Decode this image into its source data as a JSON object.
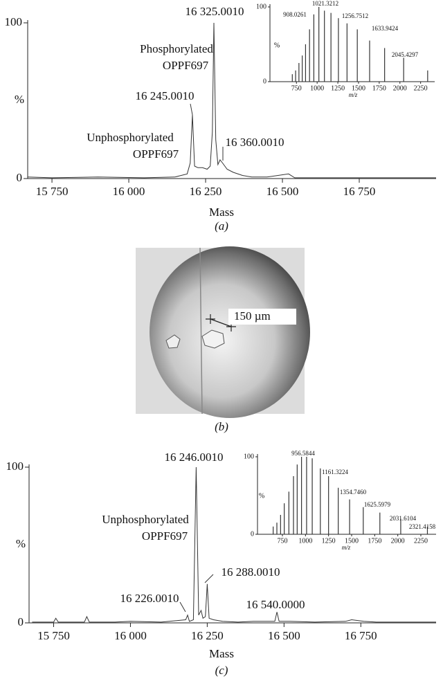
{
  "chart_data": [
    {
      "type": "line",
      "x_label": "Mass",
      "y_label": "%",
      "caption": "(a)",
      "color": "#333333",
      "x": [
        15671,
        15750,
        15900,
        16050,
        16150,
        16190,
        16200,
        16207,
        16214,
        16225,
        16240,
        16255,
        16265,
        16272,
        16277,
        16283,
        16290,
        16297,
        16305,
        16320,
        16340,
        16370,
        16400,
        16450,
        16520,
        16540,
        16700,
        17000
      ],
      "values": [
        1,
        0.5,
        1,
        0.5,
        1,
        3,
        10,
        41,
        8,
        7,
        7,
        6,
        8,
        30,
        100,
        25,
        9,
        12,
        10,
        6,
        4,
        2,
        1,
        1,
        3,
        0.5,
        0.5,
        0.5
      ],
      "xlim": [
        15671,
        17000
      ],
      "ylim": [
        0,
        100
      ],
      "xticks": [
        {
          "value": 15750,
          "label": "15 750"
        },
        {
          "value": 16000,
          "label": "16 000"
        },
        {
          "value": 16250,
          "label": "16 250"
        },
        {
          "value": 16500,
          "label": "16 500"
        },
        {
          "value": 16750,
          "label": "16 750"
        }
      ],
      "yticks": [
        0,
        100
      ],
      "annotations": [
        "16 325.0010",
        "Phosphorylated",
        "OPPF697",
        "16 245.0010",
        "Unphosphorylated",
        "OPPF697",
        "16 360.0010"
      ]
    },
    {
      "type": "stem",
      "x_label": "m/z",
      "y_label": "%",
      "color": "#333333",
      "x": [
        700,
        740,
        780,
        820,
        860,
        908,
        960,
        1021,
        1088,
        1167,
        1257,
        1361,
        1485,
        1634,
        1815,
        2045,
        2335
      ],
      "values": [
        10,
        15,
        25,
        35,
        50,
        70,
        90,
        100,
        95,
        92,
        85,
        78,
        70,
        55,
        45,
        32,
        15
      ],
      "xlim": [
        430,
        2420
      ],
      "ylim": [
        0,
        100
      ],
      "xticks": [
        750,
        1000,
        1250,
        1500,
        1750,
        2000,
        2250
      ],
      "yticks": [
        0,
        100
      ],
      "annotations": [
        "908.0261",
        "1021.3212",
        "1256.7512",
        "1633.9424",
        "2045.4297"
      ]
    },
    {
      "type": "line",
      "x_label": "Mass",
      "y_label": "%",
      "caption": "(c)",
      "color": "#333333",
      "x": [
        15680,
        15750,
        15757,
        15765,
        15850,
        15858,
        15866,
        15950,
        16000,
        16100,
        16180,
        16186,
        16192,
        16205,
        16214,
        16222,
        16230,
        16236,
        16244,
        16250,
        16256,
        16270,
        16300,
        16350,
        16400,
        16470,
        16477,
        16484,
        16520,
        16600,
        16700,
        16720,
        16760,
        16800,
        16900,
        16995
      ],
      "values": [
        0.5,
        0.5,
        3,
        0.5,
        0.5,
        4,
        0.5,
        0.5,
        1,
        0.5,
        2,
        5,
        1,
        2,
        100,
        5,
        8,
        3,
        4,
        25,
        3,
        2,
        1,
        0.5,
        1,
        1,
        7,
        1,
        1,
        0.5,
        1,
        2,
        1,
        0.5,
        0.5,
        0.5
      ],
      "xlim": [
        15670,
        16995
      ],
      "ylim": [
        0,
        100
      ],
      "xticks": [
        {
          "value": 15750,
          "label": "15 750"
        },
        {
          "value": 16000,
          "label": "16 000"
        },
        {
          "value": 16250,
          "label": "16 250"
        },
        {
          "value": 16500,
          "label": "16 500"
        },
        {
          "value": 16750,
          "label": "16 750"
        }
      ],
      "yticks": [
        0,
        100
      ],
      "annotations": [
        "16 246.0010",
        "Unphosphorylated",
        "OPPF697",
        "16 288.0010",
        "16 226.0010",
        "16 540.0000"
      ]
    },
    {
      "type": "stem",
      "x_label": "m/z",
      "y_label": "%",
      "color": "#333333",
      "x": [
        650,
        690,
        730,
        770,
        820,
        870,
        910,
        957,
        1012,
        1073,
        1161,
        1250,
        1355,
        1478,
        1626,
        1806,
        2032,
        2321
      ],
      "values": [
        10,
        15,
        25,
        40,
        55,
        75,
        90,
        100,
        100,
        98,
        85,
        75,
        60,
        45,
        35,
        28,
        20,
        10
      ],
      "xlim": [
        480,
        2415
      ],
      "ylim": [
        0,
        100
      ],
      "xticks": [
        750,
        1000,
        1250,
        1500,
        1750,
        2000,
        2250
      ],
      "yticks": [
        0,
        100
      ],
      "annotations": [
        "956.5844",
        "1161.3224",
        "1354.7460",
        "1625.5979",
        "2031.6104",
        "2321.4158"
      ]
    }
  ],
  "figure_b": {
    "scale_label": "150 µm",
    "caption": "(b)"
  }
}
